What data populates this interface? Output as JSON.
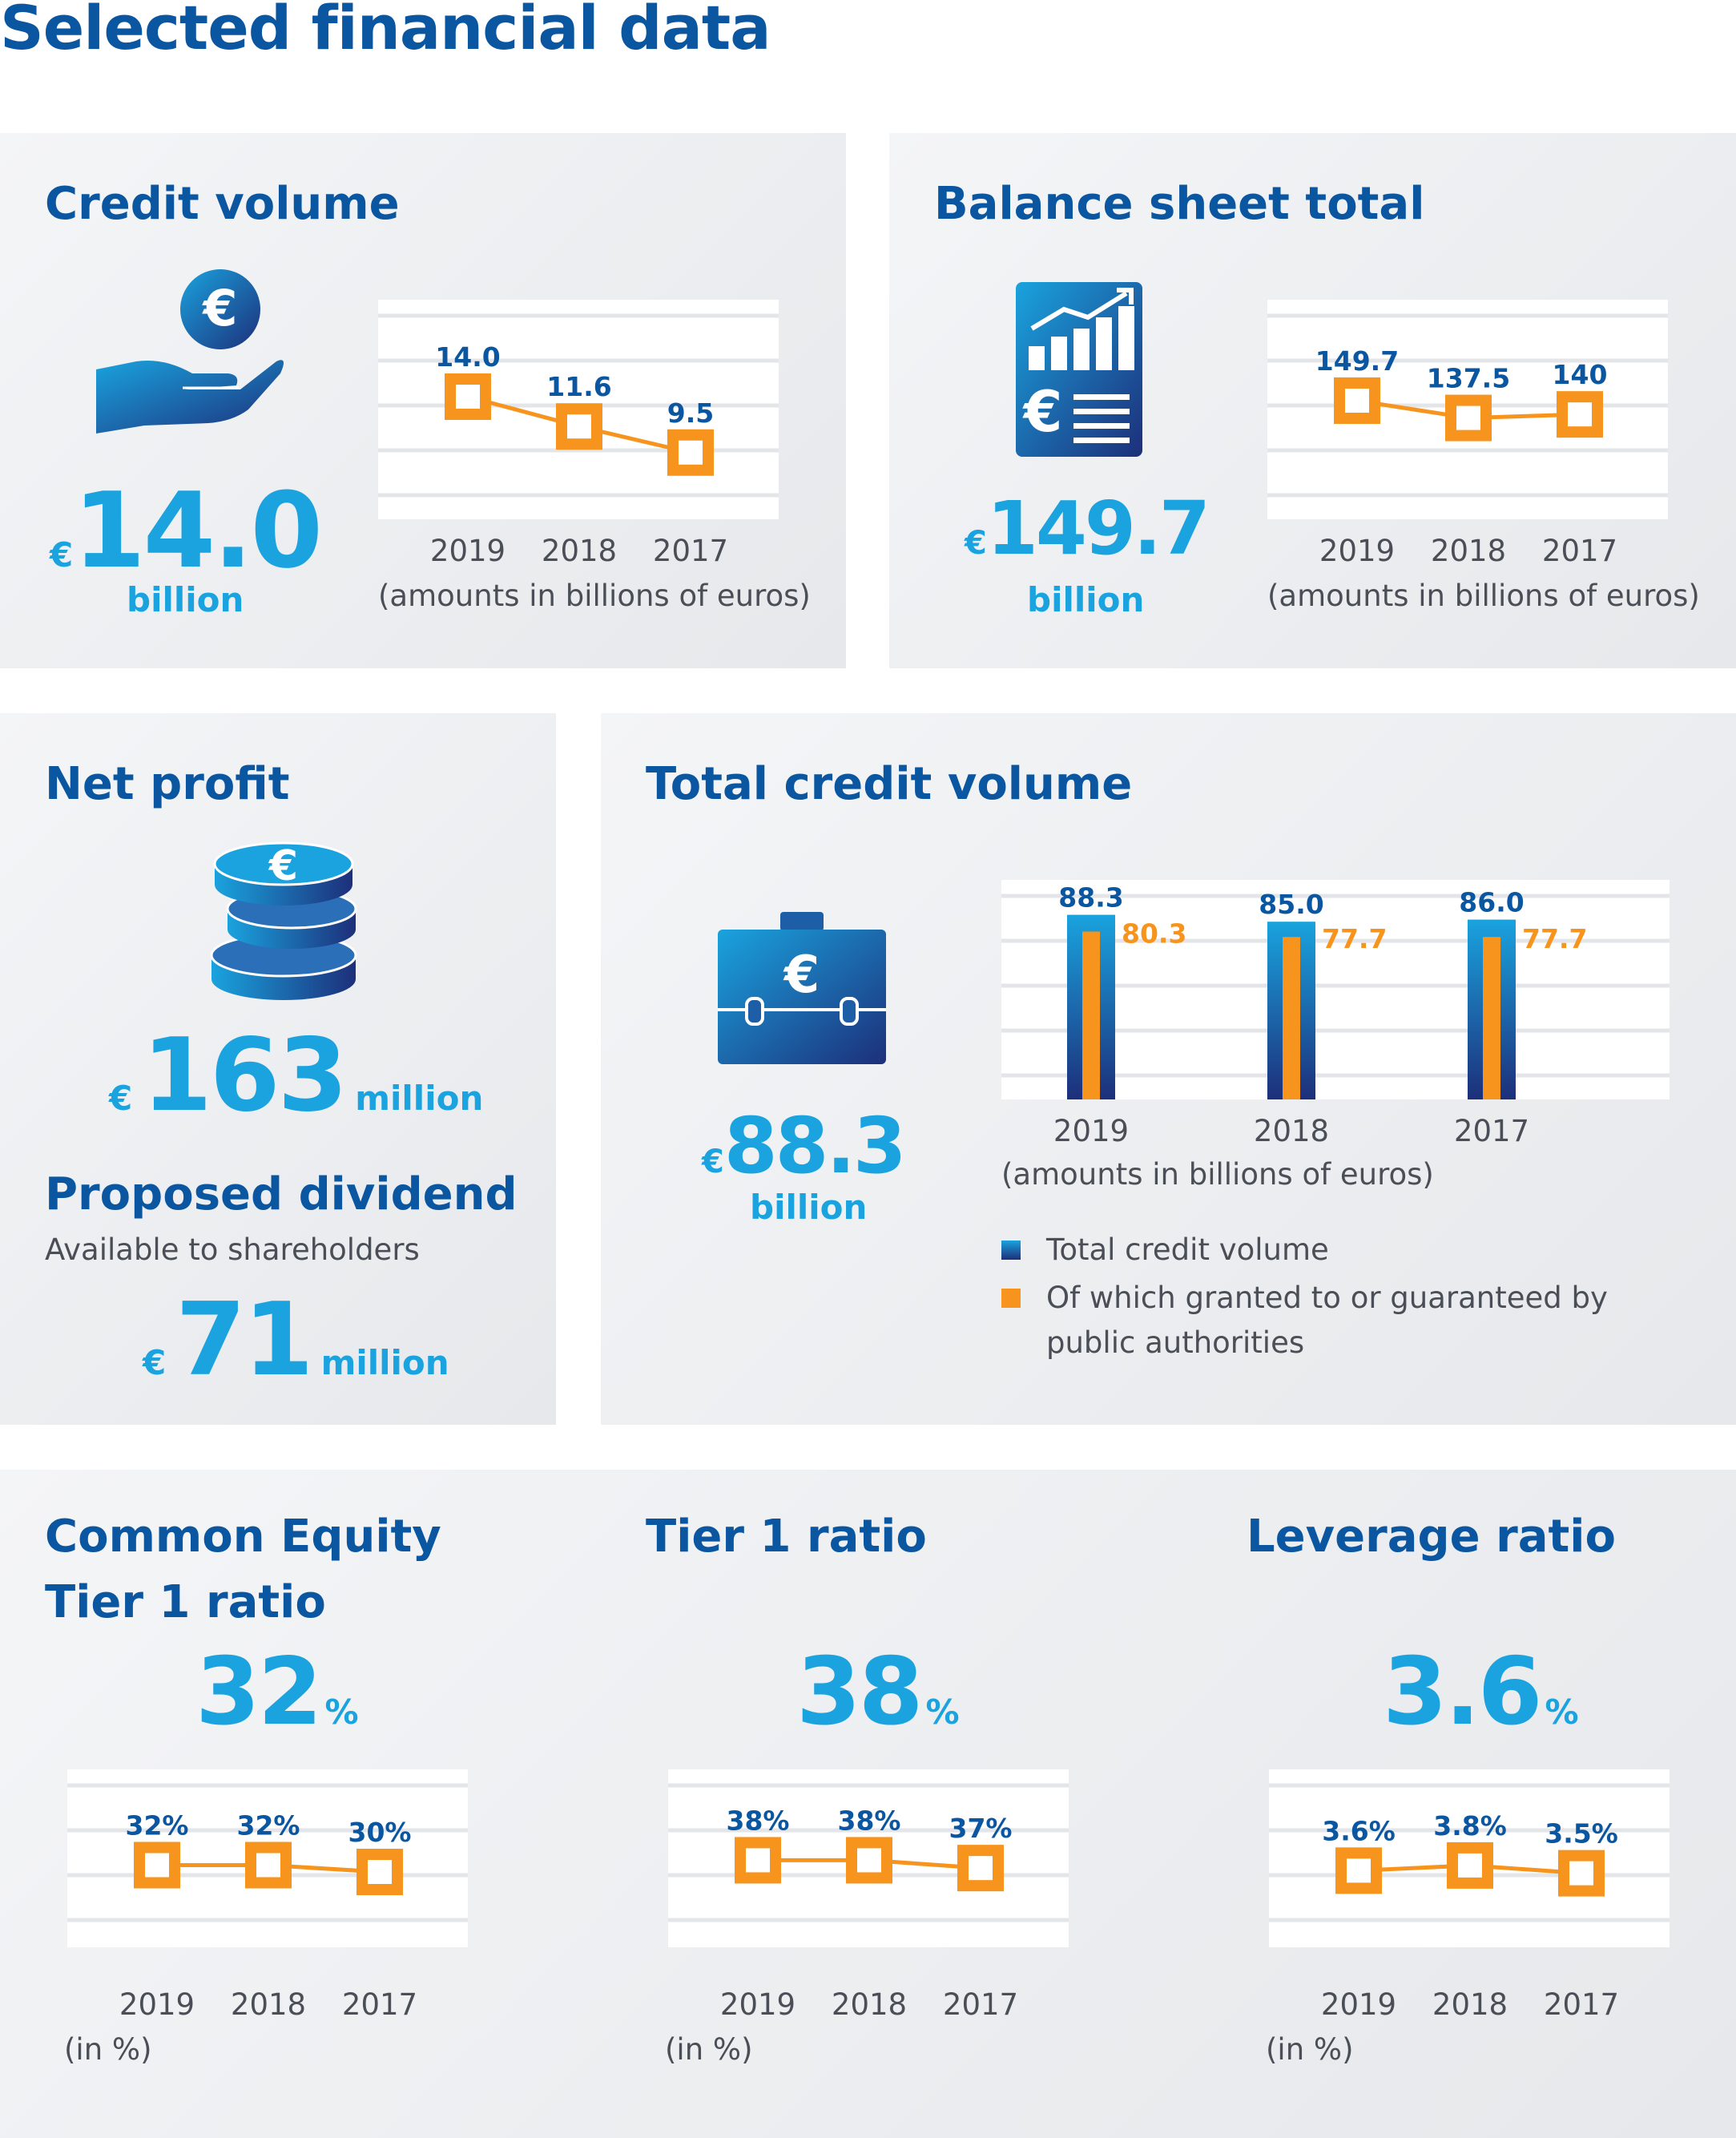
{
  "page_title": "Selected financial data",
  "colors": {
    "blue_dark": "#0a56a0",
    "blue_light": "#1aa3de",
    "orange": "#f7941d",
    "navy": "#1d2f7a"
  },
  "cards": {
    "credit_volume": {
      "title": "Credit volume",
      "icon": "hand-euro-coin-icon",
      "currency": "€",
      "value": "14.0",
      "unit": "billion",
      "caption": "(amounts in billions of euros)"
    },
    "balance_sheet": {
      "title": "Balance sheet total",
      "icon": "financial-report-icon",
      "currency": "€",
      "value": "149.7",
      "unit": "billion",
      "caption": "(amounts in billions of euros)"
    },
    "net_profit": {
      "title": "Net profit",
      "icon": "coin-stack-icon",
      "currency": "€",
      "value": "163",
      "unit": "million",
      "dividend_title": "Proposed dividend",
      "dividend_sub": "Available to shareholders",
      "dividend_currency": "€",
      "dividend_value": "71",
      "dividend_unit": "million"
    },
    "total_credit": {
      "title": "Total credit volume",
      "icon": "briefcase-euro-icon",
      "currency": "€",
      "value": "88.3",
      "unit": "billion",
      "caption": "(amounts in billions of euros)",
      "legend": [
        "Total credit volume",
        "Of which granted to or guaranteed by public authorities"
      ]
    },
    "cet1": {
      "title_line1": "Common Equity",
      "title_line2": "Tier 1 ratio",
      "value": "32",
      "unit": "%",
      "caption": "(in %)"
    },
    "tier1": {
      "title": "Tier 1 ratio",
      "value": "38",
      "unit": "%",
      "caption": "(in %)"
    },
    "leverage": {
      "title": "Leverage ratio",
      "value": "3.6",
      "unit": "%",
      "caption": "(in %)"
    }
  },
  "chart_data": [
    {
      "id": "credit_volume",
      "type": "line",
      "categories": [
        "2019",
        "2018",
        "2017"
      ],
      "values": [
        14.0,
        11.6,
        9.5
      ],
      "labels": [
        "14.0",
        "11.6",
        "9.5"
      ],
      "ylim": [
        0,
        20
      ]
    },
    {
      "id": "balance_sheet",
      "type": "line",
      "categories": [
        "2019",
        "2018",
        "2017"
      ],
      "values": [
        149.7,
        137.5,
        140
      ],
      "labels": [
        "149.7",
        "137.5",
        "140"
      ],
      "ylim": [
        0,
        200
      ]
    },
    {
      "id": "total_credit",
      "type": "bar",
      "categories": [
        "2019",
        "2018",
        "2017"
      ],
      "series": [
        {
          "name": "Total credit volume",
          "values": [
            88.3,
            85.0,
            86.0
          ],
          "labels": [
            "88.3",
            "85.0",
            "86.0"
          ]
        },
        {
          "name": "Of which granted to or guaranteed by public authorities",
          "values": [
            80.3,
            77.7,
            77.7
          ],
          "labels": [
            "80.3",
            "77.7",
            "77.7"
          ]
        }
      ],
      "ylim": [
        0,
        100
      ]
    },
    {
      "id": "cet1",
      "type": "line",
      "categories": [
        "2019",
        "2018",
        "2017"
      ],
      "values": [
        32,
        32,
        30
      ],
      "labels": [
        "32%",
        "32%",
        "30%"
      ],
      "ylim": [
        0,
        60
      ]
    },
    {
      "id": "tier1",
      "type": "line",
      "categories": [
        "2019",
        "2018",
        "2017"
      ],
      "values": [
        38,
        38,
        37
      ],
      "labels": [
        "38%",
        "38%",
        "37%"
      ],
      "ylim": [
        0,
        50
      ]
    },
    {
      "id": "leverage",
      "type": "line",
      "categories": [
        "2019",
        "2018",
        "2017"
      ],
      "values": [
        3.6,
        3.8,
        3.5
      ],
      "labels": [
        "3.6%",
        "3.8%",
        "3.5%"
      ],
      "ylim": [
        0,
        6
      ]
    }
  ]
}
